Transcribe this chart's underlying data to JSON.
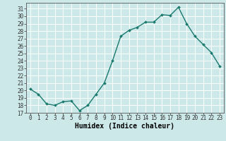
{
  "x": [
    0,
    1,
    2,
    3,
    4,
    5,
    6,
    7,
    8,
    9,
    10,
    11,
    12,
    13,
    14,
    15,
    16,
    17,
    18,
    19,
    20,
    21,
    22,
    23
  ],
  "y": [
    20.2,
    19.5,
    18.2,
    18.0,
    18.5,
    18.6,
    17.3,
    18.0,
    19.5,
    21.0,
    24.0,
    27.3,
    28.1,
    28.5,
    29.2,
    29.2,
    30.2,
    30.1,
    31.2,
    29.0,
    27.3,
    26.2,
    25.1,
    23.3
  ],
  "line_color": "#1a7a6e",
  "marker": "D",
  "marker_size": 2,
  "bg_color": "#cce8e8",
  "grid_color": "#ffffff",
  "xlabel": "Humidex (Indice chaleur)",
  "xlim": [
    -0.5,
    23.5
  ],
  "ylim": [
    17,
    31.8
  ],
  "yticks": [
    17,
    18,
    19,
    20,
    21,
    22,
    23,
    24,
    25,
    26,
    27,
    28,
    29,
    30,
    31
  ],
  "xticks": [
    0,
    1,
    2,
    3,
    4,
    5,
    6,
    7,
    8,
    9,
    10,
    11,
    12,
    13,
    14,
    15,
    16,
    17,
    18,
    19,
    20,
    21,
    22,
    23
  ],
  "tick_fontsize": 5.5,
  "xlabel_fontsize": 7,
  "line_width": 1.0
}
